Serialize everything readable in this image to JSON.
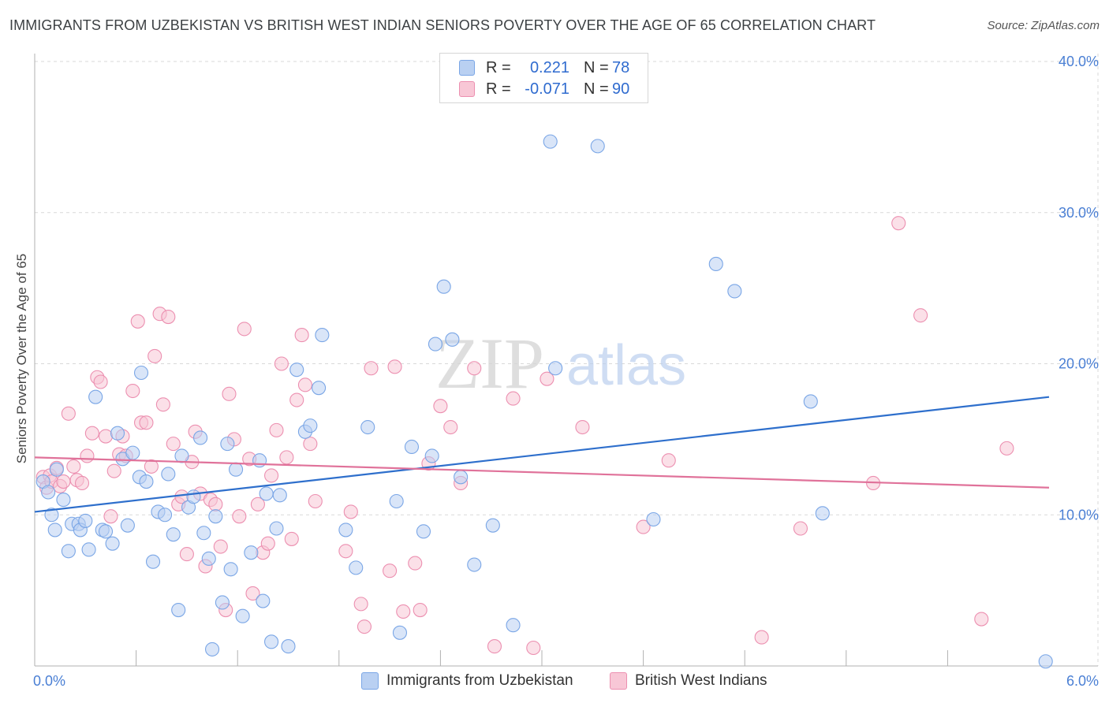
{
  "title": "IMMIGRANTS FROM UZBEKISTAN VS BRITISH WEST INDIAN SENIORS POVERTY OVER THE AGE OF 65 CORRELATION CHART",
  "source": "Source: ZipAtlas.com",
  "watermark": {
    "zip": "ZIP",
    "atlas": "atlas"
  },
  "legend": {
    "r_label": "R =",
    "n_label": "N =",
    "rows": [
      {
        "r": "0.221",
        "n": "78",
        "color": "#7aa6e6"
      },
      {
        "r": "-0.071",
        "n": "90",
        "color": "#ec8fb0"
      }
    ]
  },
  "bottom_legend": {
    "series_a": "Immigrants from Uzbekistan",
    "series_b": "British West Indians"
  },
  "colors": {
    "blue_fill": "#b9d0f2",
    "blue_stroke": "#7aa6e6",
    "blue_line": "#2e6fcc",
    "pink_fill": "#f8c7d6",
    "pink_stroke": "#ec8fb0",
    "pink_line": "#e0729a",
    "grid": "#d9d9d9",
    "tick_text": "#4a7fd4"
  },
  "chart_data": {
    "type": "scatter",
    "title": "IMMIGRANTS FROM UZBEKISTAN VS BRITISH WEST INDIAN SENIORS POVERTY OVER THE AGE OF 65 CORRELATION CHART",
    "xlabel": "",
    "ylabel": "Seniors Poverty Over the Age of 65",
    "xlim": [
      0,
      6
    ],
    "ylim": [
      0,
      40
    ],
    "x_tick_labels": [
      {
        "value": 0,
        "label": "0.0%"
      },
      {
        "value": 6,
        "label": "6.0%"
      }
    ],
    "y_tick_labels": [
      {
        "value": 10,
        "label": "10.0%"
      },
      {
        "value": 20,
        "label": "20.0%"
      },
      {
        "value": 30,
        "label": "30.0%"
      },
      {
        "value": 40,
        "label": "40.0%"
      }
    ],
    "x_minor_ticks": [
      0.6,
      1.2,
      1.8,
      2.4,
      3.0,
      3.6,
      4.2,
      4.8,
      5.4
    ],
    "legend_position": "top-center",
    "series": [
      {
        "name": "Immigrants from Uzbekistan",
        "R": 0.221,
        "N": 78,
        "trend": {
          "x": [
            0,
            6
          ],
          "y": [
            10.2,
            17.8
          ]
        },
        "points": [
          [
            0.05,
            12.2
          ],
          [
            0.08,
            11.5
          ],
          [
            0.1,
            10.0
          ],
          [
            0.12,
            9.0
          ],
          [
            0.13,
            13.0
          ],
          [
            0.17,
            11.0
          ],
          [
            0.2,
            7.6
          ],
          [
            0.22,
            9.4
          ],
          [
            0.26,
            9.4
          ],
          [
            0.27,
            9.0
          ],
          [
            0.3,
            9.6
          ],
          [
            0.32,
            7.7
          ],
          [
            0.36,
            17.8
          ],
          [
            0.4,
            9.0
          ],
          [
            0.42,
            8.9
          ],
          [
            0.46,
            8.1
          ],
          [
            0.49,
            15.4
          ],
          [
            0.52,
            13.7
          ],
          [
            0.55,
            9.3
          ],
          [
            0.58,
            14.1
          ],
          [
            0.62,
            12.5
          ],
          [
            0.63,
            19.4
          ],
          [
            0.66,
            12.2
          ],
          [
            0.7,
            6.9
          ],
          [
            0.73,
            10.2
          ],
          [
            0.77,
            10.0
          ],
          [
            0.79,
            12.7
          ],
          [
            0.82,
            8.7
          ],
          [
            0.85,
            3.7
          ],
          [
            0.87,
            13.9
          ],
          [
            0.91,
            10.5
          ],
          [
            0.94,
            11.2
          ],
          [
            0.98,
            15.1
          ],
          [
            1.0,
            8.8
          ],
          [
            1.03,
            7.1
          ],
          [
            1.05,
            1.1
          ],
          [
            1.07,
            9.9
          ],
          [
            1.11,
            4.2
          ],
          [
            1.14,
            14.7
          ],
          [
            1.16,
            6.4
          ],
          [
            1.19,
            13.0
          ],
          [
            1.23,
            3.3
          ],
          [
            1.28,
            7.5
          ],
          [
            1.33,
            13.6
          ],
          [
            1.35,
            4.3
          ],
          [
            1.37,
            11.4
          ],
          [
            1.4,
            1.6
          ],
          [
            1.43,
            9.1
          ],
          [
            1.45,
            11.3
          ],
          [
            1.5,
            1.3
          ],
          [
            1.55,
            19.6
          ],
          [
            1.6,
            15.5
          ],
          [
            1.63,
            15.9
          ],
          [
            1.68,
            18.4
          ],
          [
            1.7,
            21.9
          ],
          [
            1.84,
            9.0
          ],
          [
            1.9,
            6.5
          ],
          [
            1.97,
            15.8
          ],
          [
            2.14,
            10.9
          ],
          [
            2.16,
            2.2
          ],
          [
            2.23,
            14.5
          ],
          [
            2.3,
            8.9
          ],
          [
            2.35,
            13.9
          ],
          [
            2.37,
            21.3
          ],
          [
            2.42,
            25.1
          ],
          [
            2.47,
            21.6
          ],
          [
            2.52,
            12.5
          ],
          [
            2.6,
            6.7
          ],
          [
            2.71,
            9.3
          ],
          [
            2.83,
            2.7
          ],
          [
            3.05,
            34.7
          ],
          [
            3.08,
            19.7
          ],
          [
            3.33,
            34.4
          ],
          [
            3.66,
            9.7
          ],
          [
            4.03,
            26.6
          ],
          [
            4.14,
            24.8
          ],
          [
            4.59,
            17.5
          ],
          [
            4.66,
            10.1
          ],
          [
            5.98,
            0.3
          ]
        ]
      },
      {
        "name": "British West Indians",
        "R": -0.071,
        "N": 90,
        "trend": {
          "x": [
            0,
            6
          ],
          "y": [
            13.8,
            11.8
          ]
        },
        "points": [
          [
            0.05,
            12.5
          ],
          [
            0.07,
            11.8
          ],
          [
            0.09,
            12.6
          ],
          [
            0.1,
            12.2
          ],
          [
            0.13,
            13.1
          ],
          [
            0.15,
            11.9
          ],
          [
            0.17,
            12.2
          ],
          [
            0.2,
            16.7
          ],
          [
            0.23,
            13.2
          ],
          [
            0.25,
            12.3
          ],
          [
            0.28,
            12.1
          ],
          [
            0.31,
            13.9
          ],
          [
            0.34,
            15.4
          ],
          [
            0.37,
            19.1
          ],
          [
            0.39,
            18.8
          ],
          [
            0.42,
            15.2
          ],
          [
            0.45,
            9.9
          ],
          [
            0.47,
            12.9
          ],
          [
            0.5,
            14.0
          ],
          [
            0.52,
            15.2
          ],
          [
            0.54,
            13.9
          ],
          [
            0.58,
            18.2
          ],
          [
            0.61,
            22.8
          ],
          [
            0.63,
            16.1
          ],
          [
            0.66,
            16.1
          ],
          [
            0.69,
            13.2
          ],
          [
            0.71,
            20.5
          ],
          [
            0.74,
            23.3
          ],
          [
            0.76,
            17.3
          ],
          [
            0.79,
            23.1
          ],
          [
            0.82,
            14.7
          ],
          [
            0.85,
            10.7
          ],
          [
            0.87,
            11.2
          ],
          [
            0.9,
            7.4
          ],
          [
            0.93,
            13.5
          ],
          [
            0.95,
            15.5
          ],
          [
            0.98,
            11.4
          ],
          [
            1.01,
            6.6
          ],
          [
            1.04,
            11.0
          ],
          [
            1.07,
            10.7
          ],
          [
            1.1,
            7.9
          ],
          [
            1.13,
            3.7
          ],
          [
            1.15,
            18.0
          ],
          [
            1.18,
            15.0
          ],
          [
            1.21,
            9.9
          ],
          [
            1.24,
            22.3
          ],
          [
            1.27,
            13.7
          ],
          [
            1.29,
            4.8
          ],
          [
            1.32,
            10.7
          ],
          [
            1.35,
            7.5
          ],
          [
            1.38,
            8.1
          ],
          [
            1.4,
            12.6
          ],
          [
            1.43,
            15.6
          ],
          [
            1.46,
            20.0
          ],
          [
            1.49,
            13.8
          ],
          [
            1.52,
            8.4
          ],
          [
            1.55,
            17.6
          ],
          [
            1.58,
            21.9
          ],
          [
            1.6,
            18.6
          ],
          [
            1.63,
            14.7
          ],
          [
            1.66,
            10.9
          ],
          [
            1.84,
            7.6
          ],
          [
            1.87,
            10.2
          ],
          [
            1.93,
            4.1
          ],
          [
            1.95,
            2.6
          ],
          [
            1.99,
            19.7
          ],
          [
            2.1,
            6.3
          ],
          [
            2.13,
            19.8
          ],
          [
            2.18,
            3.6
          ],
          [
            2.25,
            6.8
          ],
          [
            2.28,
            3.7
          ],
          [
            2.33,
            13.4
          ],
          [
            2.4,
            17.2
          ],
          [
            2.46,
            15.8
          ],
          [
            2.52,
            12.1
          ],
          [
            2.6,
            19.7
          ],
          [
            2.72,
            1.3
          ],
          [
            2.83,
            17.7
          ],
          [
            2.95,
            1.2
          ],
          [
            3.03,
            19.0
          ],
          [
            3.24,
            15.8
          ],
          [
            3.6,
            9.2
          ],
          [
            3.75,
            13.6
          ],
          [
            4.3,
            1.9
          ],
          [
            4.53,
            9.1
          ],
          [
            4.96,
            12.1
          ],
          [
            5.11,
            29.3
          ],
          [
            5.24,
            23.2
          ],
          [
            5.6,
            3.1
          ],
          [
            5.75,
            14.4
          ]
        ]
      }
    ]
  }
}
